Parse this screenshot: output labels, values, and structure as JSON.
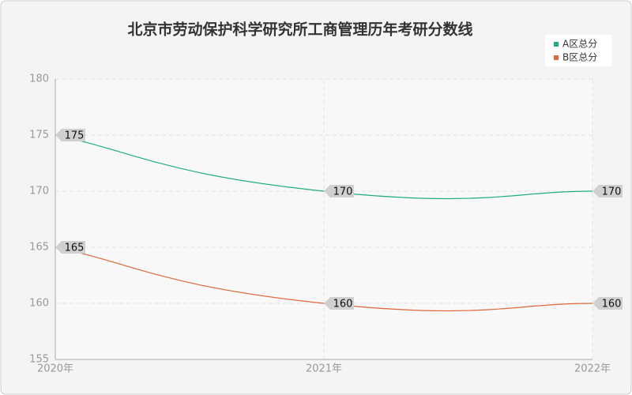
{
  "chart_data": {
    "type": "line",
    "title": "北京市劳动保护科学研究所工商管理历年考研分数线",
    "categories": [
      "2020年",
      "2021年",
      "2022年"
    ],
    "series": [
      {
        "name": "A区总分",
        "color": "#1fae7b",
        "values": [
          175,
          170,
          170
        ]
      },
      {
        "name": "B区总分",
        "color": "#e0683a",
        "values": [
          165,
          160,
          160
        ]
      }
    ],
    "ylim": [
      155,
      180
    ],
    "yticks": [
      155,
      160,
      165,
      170,
      175,
      180
    ],
    "grid": true,
    "legend": "top-right"
  }
}
